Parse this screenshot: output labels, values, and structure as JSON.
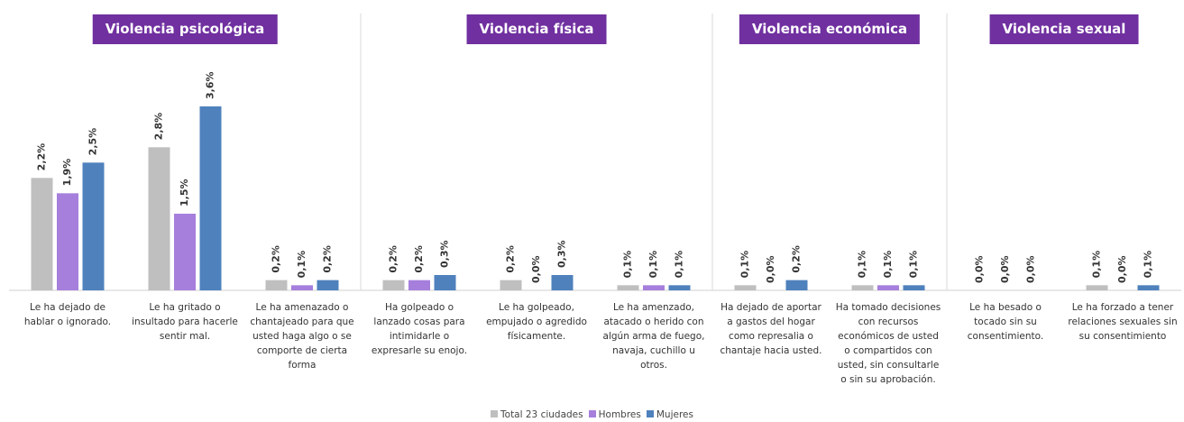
{
  "chart_data": {
    "type": "bar",
    "groups": [
      {
        "title": "Violencia psicológica",
        "count": 3
      },
      {
        "title": "Violencia física",
        "count": 3
      },
      {
        "title": "Violencia económica",
        "count": 2
      },
      {
        "title": "Violencia sexual",
        "count": 2
      }
    ],
    "categories": [
      "Le ha dejado de\nhablar o ignorado.",
      "Le ha gritado o\ninsultado para hacerle\nsentir mal.",
      "Le ha amenazado o\nchantajeado para que\nusted haga algo o se\ncomporte de cierta\nforma",
      "Ha golpeado o\nlanzado cosas para\nintimidarle o\nexpresarle su enojo.",
      "Le ha golpeado,\nempujado o agredido\nfísicamente.",
      "Le ha amenzado,\natacado o herido con\nalgún arma de fuego,\nnavaja, cuchillo u\notros.",
      "Ha dejado de aportar\na gastos del hogar\ncomo represalia o\nchantaje hacia usted.",
      "Ha tomado decisiones\ncon recursos\neconómicos de usted\no compartidos con\nusted, sin consultarle\no sin su aprobación.",
      "Le ha besado o\ntocado sin su\nconsentimiento.",
      "Le ha forzado a tener\nrelaciones sexuales sin\nsu consentimiento"
    ],
    "series": [
      {
        "name": "Total 23 ciudades",
        "color": "#bfbfbf",
        "values": [
          2.2,
          2.8,
          0.2,
          0.2,
          0.2,
          0.1,
          0.1,
          0.1,
          0.0,
          0.1
        ],
        "value_labels": [
          "2,2%",
          "2,8%",
          "0,2%",
          "0,2%",
          "0,2%",
          "0,1%",
          "0,1%",
          "0,1%",
          "0,0%",
          "0,1%"
        ]
      },
      {
        "name": "Hombres",
        "color": "#a67fdc",
        "values": [
          1.9,
          1.5,
          0.1,
          0.2,
          0.0,
          0.1,
          0.0,
          0.1,
          0.0,
          0.0
        ],
        "value_labels": [
          "1,9%",
          "1,5%",
          "0,1%",
          "0,2%",
          "0,0%",
          "0,1%",
          "0,0%",
          "0,1%",
          "0,0%",
          "0,0%"
        ]
      },
      {
        "name": "Mujeres",
        "color": "#4f81bd",
        "values": [
          2.5,
          3.6,
          0.2,
          0.3,
          0.3,
          0.1,
          0.2,
          0.1,
          0.0,
          0.1
        ],
        "value_labels": [
          "2,5%",
          "3,6%",
          "0,2%",
          "0,3%",
          "0,3%",
          "0,1%",
          "0,2%",
          "0,1%",
          "0,0%",
          "0,1%"
        ]
      }
    ],
    "header_color": "#7030a0"
  }
}
